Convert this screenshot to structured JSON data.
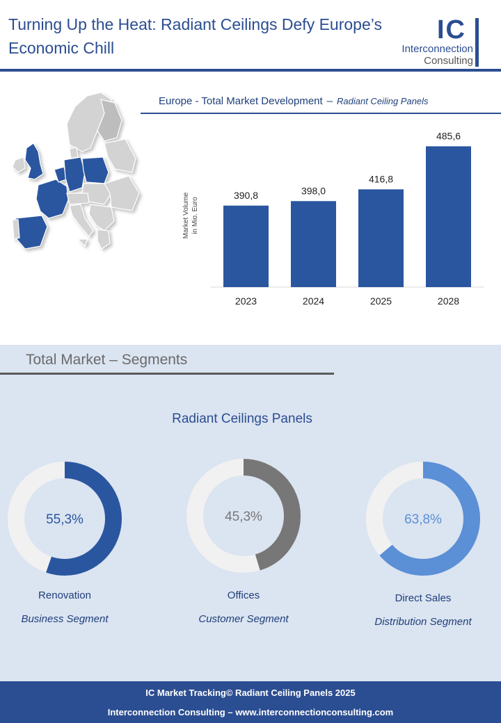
{
  "header": {
    "title_line1": "Turning Up the Heat: Radiant Ceilings Defy Europe’s",
    "title_line2": "Economic Chill",
    "logo_mark": "IC",
    "logo_line1": "Interconnection",
    "logo_line2": "Consulting"
  },
  "colors": {
    "brand_blue": "#2b4d91",
    "bar_blue": "#2a56a0",
    "donut_track": "#f1f1f1",
    "offices_gray": "#777777",
    "direct_sales_blue": "#5b8fd6",
    "segment_band": "#dbe4f1"
  },
  "bar_chart": {
    "title_main": "Europe - Total Market Development",
    "title_dash": "–",
    "title_sub": "Radiant Ceiling Panels"
  },
  "chart_data": [
    {
      "type": "bar",
      "title": "Europe - Total Market Development – Radiant Ceiling Panels",
      "categories": [
        "2023",
        "2024",
        "2025",
        "2028"
      ],
      "values": [
        390.8,
        398.0,
        416.8,
        485.6
      ],
      "value_labels": [
        "390,8",
        "398,0",
        "416,8",
        "485,6"
      ],
      "ylabel_line1": "Market Volume",
      "ylabel_line2": "in Mio. Euro",
      "ylim": [
        0,
        600
      ],
      "grid": false,
      "legend": "none"
    },
    {
      "type": "pie",
      "title": "Radiant Ceilings Panels",
      "donuts": [
        {
          "label": "Renovation",
          "segment": "Business Segment",
          "value": 55.3,
          "display": "55,3%",
          "color": "#2a56a0"
        },
        {
          "label": "Offices",
          "segment": "Customer Segment",
          "value": 45.3,
          "display": "45,3%",
          "color": "#777777"
        },
        {
          "label": "Direct Sales",
          "segment": "Distribution Segment",
          "value": 63.8,
          "display": "63,8%",
          "color": "#5b8fd6"
        }
      ]
    }
  ],
  "segments": {
    "section_title": "Total Market – Segments",
    "subtitle": "Radiant Ceilings Panels"
  },
  "footer": {
    "line1": "IC Market Tracking© Radiant Ceiling Panels 2025",
    "line2": "Interconnection Consulting –  www.interconnectionconsulting.com"
  }
}
